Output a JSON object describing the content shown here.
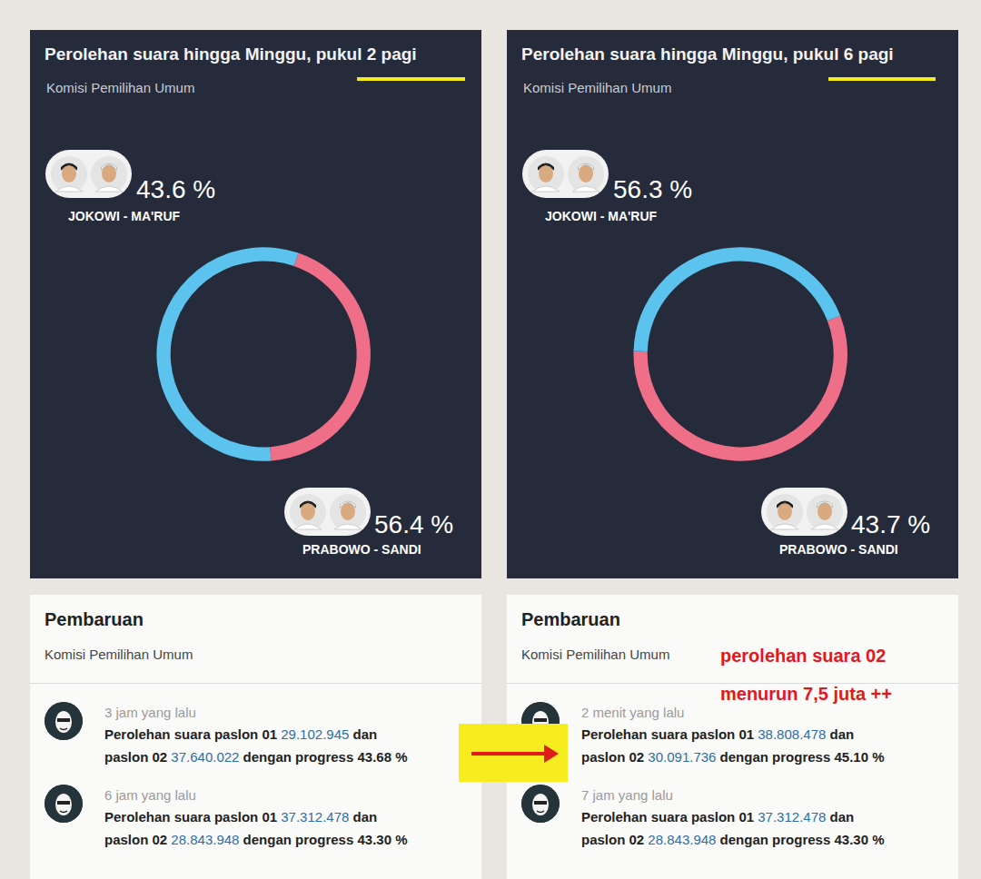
{
  "chart_data": [
    {
      "type": "pie",
      "title": "Perolehan suara hingga Minggu, pukul 2 pagi",
      "subtitle": "Komisi Pemilihan Umum",
      "categories": [
        "JOKOWI - MA'RUF",
        "PRABOWO - SANDI"
      ],
      "values": [
        43.6,
        56.4
      ],
      "value_labels": [
        "43.6 %",
        "56.4 %"
      ],
      "colors": [
        "#ef6f88",
        "#5cc3ee"
      ],
      "data_labels": true
    },
    {
      "type": "pie",
      "title": "Perolehan suara hingga Minggu, pukul 6 pagi",
      "subtitle": "Komisi Pemilihan Umum",
      "categories": [
        "JOKOWI - MA'RUF",
        "PRABOWO - SANDI"
      ],
      "values": [
        56.3,
        43.7
      ],
      "value_labels": [
        "56.3 %",
        "43.7 %"
      ],
      "colors": [
        "#ef6f88",
        "#5cc3ee"
      ],
      "data_labels": true
    }
  ],
  "updates": [
    {
      "heading": "Pembaruan",
      "source": "Komisi Pemilihan Umum",
      "entries": [
        {
          "time": "3 jam yang lalu",
          "label_01": "Perolehan suara paslon 01",
          "votes_01": "29.102.945",
          "joiner": "dan",
          "label_02": "paslon 02",
          "votes_02": "37.640.022",
          "progress_label": "dengan progress",
          "progress": "43.68 %"
        },
        {
          "time": "6 jam yang lalu",
          "label_01": "Perolehan suara paslon 01",
          "votes_01": "37.312.478",
          "joiner": "dan",
          "label_02": "paslon 02",
          "votes_02": "28.843.948",
          "progress_label": "dengan progress",
          "progress": "43.30 %"
        }
      ]
    },
    {
      "heading": "Pembaruan",
      "source": "Komisi Pemilihan Umum",
      "note": [
        "perolehan suara 02",
        "menurun 7,5 juta ++"
      ],
      "entries": [
        {
          "time": "2 menit yang lalu",
          "label_01": "Perolehan suara paslon 01",
          "votes_01": "38.808.478",
          "joiner": "dan",
          "label_02": "paslon 02",
          "votes_02": "30.091.736",
          "progress_label": "dengan progress",
          "progress": "45.10 %"
        },
        {
          "time": "7 jam yang lalu",
          "label_01": "Perolehan suara paslon 01",
          "votes_01": "37.312.478",
          "joiner": "dan",
          "label_02": "paslon 02",
          "votes_02": "28.843.948",
          "progress_label": "dengan progress",
          "progress": "43.30 %"
        }
      ]
    }
  ]
}
